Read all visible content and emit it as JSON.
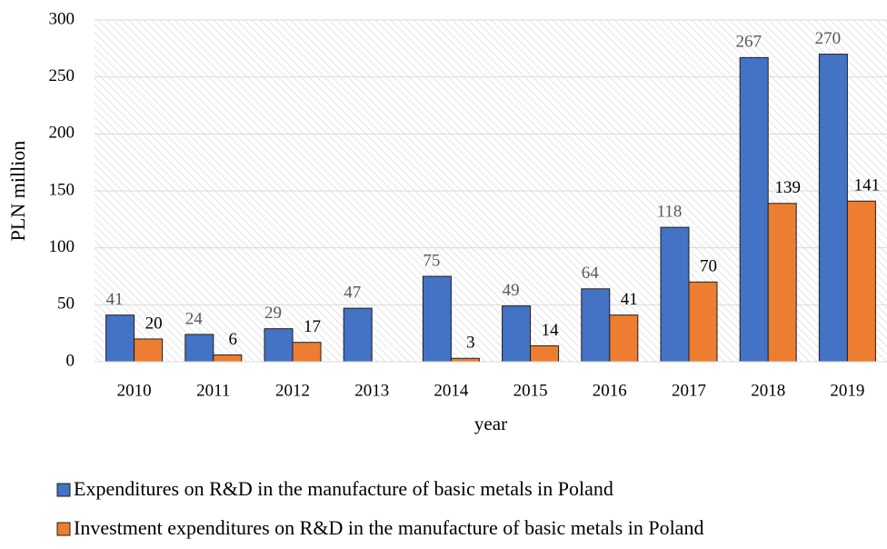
{
  "chart_data": {
    "type": "bar",
    "x_label": "year",
    "y_label": "PLN million",
    "categories": [
      "2010",
      "2011",
      "2012",
      "2013",
      "2014",
      "2015",
      "2016",
      "2017",
      "2018",
      "2019"
    ],
    "series": [
      {
        "name": "Expenditures on R&D in the manufacture of basic metals in Poland",
        "color": "#4472c4",
        "values": [
          41,
          24,
          29,
          47,
          75,
          49,
          64,
          118,
          267,
          270
        ]
      },
      {
        "name": "Investment expenditures on R&D in the manufacture of basic metals in Poland",
        "color": "#ed7d31",
        "values": [
          20,
          6,
          17,
          0,
          3,
          14,
          41,
          70,
          139,
          141
        ]
      }
    ],
    "ylim": [
      0,
      300
    ],
    "yticks": [
      0,
      50,
      100,
      150,
      200,
      250,
      300
    ],
    "grid": true,
    "legend": "bottom"
  }
}
